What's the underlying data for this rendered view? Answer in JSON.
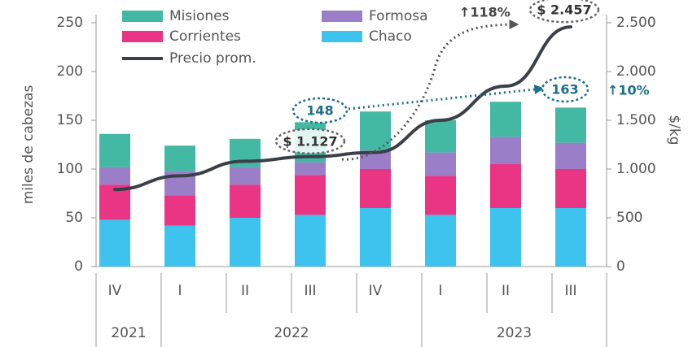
{
  "chart_data": {
    "type": "bar",
    "stacked": true,
    "categories": [
      "IV",
      "I",
      "II",
      "III",
      "IV",
      "I",
      "II",
      "III"
    ],
    "groups": [
      {
        "label": "2021",
        "count": 1
      },
      {
        "label": "2022",
        "count": 4
      },
      {
        "label": "2023",
        "count": 3
      }
    ],
    "y_label": "miles de cabezas",
    "y2_label": "$/kg",
    "ylim": [
      0,
      250
    ],
    "yticks": [
      0,
      50,
      100,
      150,
      200,
      250
    ],
    "y2lim": [
      0,
      2500
    ],
    "y2ticks": [
      0,
      500,
      {
        "value": 1000,
        "label": "1.000"
      },
      {
        "value": 1500,
        "label": "1.500"
      },
      {
        "value": 2000,
        "label": "2.000"
      },
      {
        "value": 2500,
        "label": "2.500"
      }
    ],
    "series": [
      {
        "name": "Chaco",
        "color": "#3ec3ee",
        "values": [
          48,
          42,
          50,
          53,
          60,
          53,
          60,
          60
        ]
      },
      {
        "name": "Corrientes",
        "color": "#ea3585",
        "values": [
          36,
          31,
          34,
          41,
          40,
          40,
          45,
          40
        ]
      },
      {
        "name": "Formosa",
        "color": "#9a7fc8",
        "values": [
          18,
          25,
          18,
          13,
          19,
          24,
          28,
          27
        ]
      },
      {
        "name": "Misiones",
        "color": "#43b9a3",
        "values": [
          34,
          26,
          29,
          41,
          40,
          33,
          36,
          36
        ]
      },
      {
        "name": "Precio prom.",
        "type": "line",
        "axis": "y2",
        "color": "#3b4048",
        "values": [
          790,
          930,
          1080,
          1127,
          1170,
          1500,
          1850,
          2457
        ],
        "value_labels": [
          null,
          null,
          null,
          "$ 1.127",
          null,
          null,
          null,
          "$ 2.457"
        ]
      }
    ],
    "legend_order": [
      3,
      2,
      1,
      0,
      4
    ],
    "annotations": [
      "148",
      "163",
      "↑10%",
      "↑118%"
    ]
  }
}
